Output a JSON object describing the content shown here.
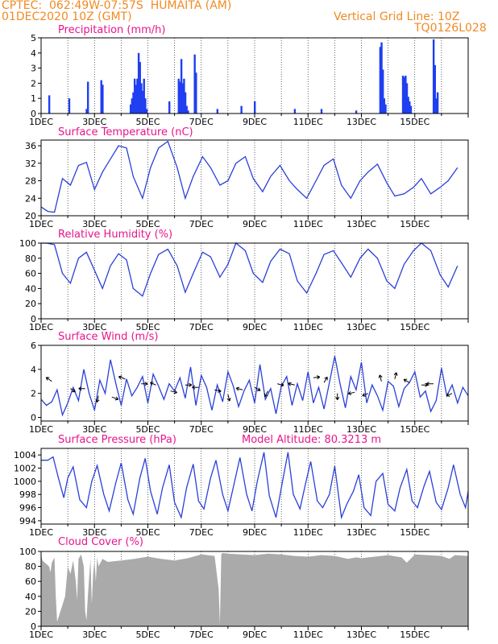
{
  "header": {
    "location": "CPTEC:  062:49W-07:57S  HUMAITA (AM)",
    "datetime": "01DEC2020 10Z (GMT)",
    "grid_note": "Vertical Grid Line: 10Z",
    "code": "TQ0126L028",
    "orange": "#f08a24",
    "magenta": "#e8148c"
  },
  "x_ticks": [
    "1DEC",
    "3DEC",
    "5DEC",
    "7DEC",
    "9DEC",
    "11DEC",
    "13DEC",
    "15DEC"
  ],
  "chart_data": [
    {
      "id": "precip",
      "type": "bar",
      "title": "Precipitation (mm/h)",
      "color": "#1f3ff0",
      "ylim": [
        0,
        5
      ],
      "yticks": [
        0,
        1,
        2,
        3,
        4,
        5
      ],
      "x_days": [
        0.3,
        1.05,
        1.7,
        1.75,
        2.25,
        2.3,
        3.35,
        3.4,
        3.45,
        3.5,
        3.55,
        3.6,
        3.65,
        3.7,
        3.75,
        3.8,
        3.85,
        3.9,
        3.95,
        4.8,
        5.15,
        5.2,
        5.25,
        5.3,
        5.35,
        5.4,
        5.45,
        5.5,
        5.75,
        5.8,
        6.6,
        7.5,
        8.0,
        9.5,
        10.5,
        11.8,
        12.7,
        12.75,
        12.8,
        12.85,
        12.9,
        13.55,
        13.6,
        13.65,
        13.7,
        13.75,
        13.8,
        13.85,
        14.7,
        14.75,
        14.8,
        14.85
      ],
      "values": [
        1.2,
        1.0,
        0.3,
        2.1,
        2.2,
        1.9,
        0.6,
        1.0,
        1.4,
        2.3,
        1.9,
        2.3,
        4.0,
        3.4,
        2.0,
        1.5,
        2.3,
        1.0,
        0.3,
        0.8,
        2.3,
        2.1,
        3.6,
        2.0,
        2.3,
        1.4,
        0.5,
        0.2,
        3.9,
        2.7,
        0.3,
        0.5,
        0.8,
        0.3,
        0.3,
        0.2,
        4.4,
        4.7,
        2.9,
        1.0,
        0.6,
        2.5,
        2.4,
        2.5,
        2.0,
        1.1,
        0.8,
        0.5,
        4.9,
        3.2,
        1.0,
        1.4
      ]
    },
    {
      "id": "temp",
      "type": "line",
      "title": "Surface Temperature (nC)",
      "color": "#2a40d8",
      "ylim": [
        20,
        37.3
      ],
      "yticks": [
        20,
        24,
        28,
        32,
        36
      ],
      "x_days": [
        0,
        0.25,
        0.5,
        0.8,
        1.1,
        1.4,
        1.7,
        2.0,
        2.3,
        2.6,
        2.9,
        3.2,
        3.45,
        3.8,
        4.1,
        4.4,
        4.75,
        5.1,
        5.4,
        5.7,
        6.05,
        6.35,
        6.7,
        7.0,
        7.3,
        7.65,
        7.95,
        8.3,
        8.6,
        8.95,
        9.3,
        9.6,
        9.95,
        10.3,
        10.6,
        10.95,
        11.25,
        11.6,
        11.95,
        12.25,
        12.6,
        12.95,
        13.25,
        13.6,
        13.95,
        14.25,
        14.6,
        14.95,
        15.25,
        15.6
      ],
      "values": [
        22,
        21,
        20.8,
        28.5,
        27,
        31.5,
        32.2,
        26,
        30,
        33,
        36,
        35.5,
        29,
        24,
        31,
        35.5,
        37,
        31,
        24,
        29,
        33.5,
        31,
        27,
        28,
        32,
        33.5,
        28.5,
        25.5,
        29,
        31.5,
        28,
        26,
        24,
        28,
        31.5,
        33,
        27,
        24,
        28,
        30,
        31.8,
        27.5,
        24.5,
        25,
        26.5,
        28.5,
        25,
        26.5,
        28,
        31
      ]
    },
    {
      "id": "rh",
      "type": "line",
      "title": "Relative Humidity (%)",
      "color": "#2a40d8",
      "ylim": [
        0,
        100
      ],
      "yticks": [
        0,
        20,
        40,
        60,
        80,
        100
      ],
      "x_days": [
        0,
        0.2,
        0.5,
        0.8,
        1.1,
        1.4,
        1.7,
        2.0,
        2.3,
        2.6,
        2.9,
        3.2,
        3.45,
        3.8,
        4.1,
        4.4,
        4.75,
        5.1,
        5.4,
        5.7,
        6.05,
        6.35,
        6.7,
        7.0,
        7.3,
        7.65,
        7.95,
        8.3,
        8.6,
        8.95,
        9.3,
        9.6,
        9.95,
        10.3,
        10.6,
        10.95,
        11.25,
        11.6,
        11.95,
        12.25,
        12.6,
        12.95,
        13.25,
        13.6,
        13.95,
        14.25,
        14.6,
        14.95,
        15.25,
        15.6
      ],
      "values": [
        100,
        100,
        98,
        60,
        47,
        80,
        88,
        64,
        40,
        70,
        86,
        78,
        40,
        30,
        60,
        85,
        92,
        70,
        35,
        60,
        88,
        82,
        55,
        72,
        100,
        90,
        60,
        48,
        76,
        92,
        86,
        50,
        34,
        60,
        85,
        90,
        74,
        55,
        80,
        92,
        80,
        50,
        40,
        72,
        90,
        100,
        90,
        58,
        42,
        70
      ]
    },
    {
      "id": "wind",
      "type": "line",
      "title": "Surface Wind (m/s)",
      "color": "#2a40d8",
      "ylim": [
        -0.3,
        6
      ],
      "yticks": [
        0,
        2,
        4,
        6
      ],
      "x_days": [
        0,
        0.2,
        0.4,
        0.6,
        0.8,
        1.0,
        1.2,
        1.4,
        1.6,
        1.8,
        2.0,
        2.2,
        2.4,
        2.6,
        2.8,
        3.0,
        3.2,
        3.4,
        3.6,
        3.8,
        4.0,
        4.2,
        4.4,
        4.6,
        4.8,
        5.0,
        5.2,
        5.4,
        5.6,
        5.8,
        6.0,
        6.2,
        6.4,
        6.6,
        6.8,
        7.0,
        7.2,
        7.4,
        7.6,
        7.8,
        8.0,
        8.2,
        8.4,
        8.6,
        8.8,
        9.0,
        9.2,
        9.4,
        9.6,
        9.8,
        10.0,
        10.2,
        10.4,
        10.6,
        10.8,
        11.0,
        11.2,
        11.4,
        11.6,
        11.8,
        12.0,
        12.2,
        12.4,
        12.6,
        12.8,
        13.0,
        13.2,
        13.4,
        13.6,
        13.8,
        14.0,
        14.2,
        14.4,
        14.6,
        14.8,
        15.0,
        15.2,
        15.4,
        15.6,
        15.8,
        16.0
      ],
      "values": [
        1.5,
        1.0,
        1.3,
        2.3,
        0.2,
        1.2,
        2.5,
        1.4,
        4.0,
        2.0,
        0.6,
        3.1,
        2.0,
        4.8,
        2.8,
        1.0,
        3.2,
        1.8,
        2.5,
        3.4,
        1.2,
        3.6,
        2.6,
        1.5,
        2.8,
        2.2,
        3.3,
        1.6,
        4.2,
        1.0,
        3.5,
        2.5,
        0.6,
        2.7,
        1.3,
        3.8,
        2.6,
        0.9,
        2.2,
        3.1,
        1.2,
        4.4,
        1.5,
        2.4,
        0.3,
        2.6,
        3.4,
        1.0,
        2.8,
        1.4,
        3.8,
        1.2,
        2.5,
        0.7,
        2.9,
        5.1,
        2.8,
        0.8,
        3.4,
        2.3,
        4.6,
        1.2,
        2.7,
        1.8,
        0.6,
        3.0,
        2.6,
        0.9,
        2.4,
        2.9,
        3.8,
        1.7,
        2.2,
        0.5,
        1.4,
        4.1,
        1.8,
        2.7,
        1.2,
        2.5,
        1.8
      ],
      "arrows": [
        {
          "x": 0.4,
          "y": 3.0,
          "dx": -7,
          "dy": -5
        },
        {
          "x": 1.1,
          "y": 2.4,
          "dx": 6,
          "dy": 4
        },
        {
          "x": 1.65,
          "y": 2.4,
          "dx": -8,
          "dy": 0
        },
        {
          "x": 2.15,
          "y": 1.8,
          "dx": -2,
          "dy": 8
        },
        {
          "x": 2.65,
          "y": 1.7,
          "dx": 8,
          "dy": 3
        },
        {
          "x": 3.15,
          "y": 3.2,
          "dx": -8,
          "dy": -3
        },
        {
          "x": 3.75,
          "y": 2.8,
          "dx": 8,
          "dy": 0
        },
        {
          "x": 4.3,
          "y": 2.7,
          "dx": -7,
          "dy": -3
        },
        {
          "x": 4.85,
          "y": 2.2,
          "dx": 8,
          "dy": 2
        },
        {
          "x": 5.4,
          "y": 2.7,
          "dx": 8,
          "dy": 0
        },
        {
          "x": 5.9,
          "y": 2.5,
          "dx": -8,
          "dy": 0
        },
        {
          "x": 6.5,
          "y": 2.3,
          "dx": 8,
          "dy": 2
        },
        {
          "x": 7.0,
          "y": 1.9,
          "dx": 2,
          "dy": 8
        },
        {
          "x": 7.55,
          "y": 2.3,
          "dx": -8,
          "dy": -2
        },
        {
          "x": 8.0,
          "y": 2.5,
          "dx": 7,
          "dy": 4
        },
        {
          "x": 8.5,
          "y": 2.2,
          "dx": -4,
          "dy": 7
        },
        {
          "x": 8.85,
          "y": 2.8,
          "dx": 8,
          "dy": 2
        },
        {
          "x": 9.5,
          "y": 2.7,
          "dx": -8,
          "dy": -2
        },
        {
          "x": 10.2,
          "y": 3.3,
          "dx": 8,
          "dy": -1
        },
        {
          "x": 10.6,
          "y": 2.9,
          "dx": 4,
          "dy": -7
        },
        {
          "x": 11.1,
          "y": 2.0,
          "dx": 0,
          "dy": 8
        },
        {
          "x": 11.75,
          "y": 2.1,
          "dx": -8,
          "dy": 2
        },
        {
          "x": 12.25,
          "y": 2.0,
          "dx": -7,
          "dy": 3
        },
        {
          "x": 12.75,
          "y": 3.0,
          "dx": -2,
          "dy": -8
        },
        {
          "x": 13.25,
          "y": 3.2,
          "dx": 2,
          "dy": -8
        },
        {
          "x": 13.8,
          "y": 2.9,
          "dx": -7,
          "dy": -4
        },
        {
          "x": 14.25,
          "y": 2.7,
          "dx": 8,
          "dy": 0
        },
        {
          "x": 14.7,
          "y": 2.8,
          "dx": -9,
          "dy": 0
        },
        {
          "x": 15.4,
          "y": 2.0,
          "dx": -7,
          "dy": 3
        }
      ]
    },
    {
      "id": "pres",
      "type": "line",
      "title": "Surface Pressure (hPa)",
      "annotation": "Model Altitude: 80.3213 m",
      "color": "#2a40d8",
      "ylim": [
        993.5,
        1005
      ],
      "yticks": [
        994,
        996,
        998,
        1000,
        1002,
        1004
      ],
      "x_days": [
        0,
        0.25,
        0.45,
        0.65,
        0.85,
        1.0,
        1.2,
        1.45,
        1.7,
        1.9,
        2.1,
        2.35,
        2.55,
        2.8,
        3.0,
        3.25,
        3.45,
        3.7,
        3.9,
        4.1,
        4.35,
        4.55,
        4.8,
        5.0,
        5.25,
        5.45,
        5.7,
        5.9,
        6.1,
        6.35,
        6.55,
        6.8,
        7.0,
        7.25,
        7.45,
        7.7,
        7.9,
        8.1,
        8.35,
        8.55,
        8.8,
        9.0,
        9.25,
        9.45,
        9.7,
        9.9,
        10.1,
        10.35,
        10.55,
        10.8,
        11.0,
        11.25,
        11.45,
        11.7,
        11.9,
        12.1,
        12.35,
        12.55,
        12.8,
        13.0,
        13.25,
        13.45,
        13.7,
        13.9,
        14.1,
        14.35,
        14.55,
        14.8,
        15.0,
        15.25,
        15.45,
        15.7,
        15.9,
        16.0
      ],
      "values": [
        1003.2,
        1003.2,
        1003.7,
        1000.5,
        997.5,
        1000.5,
        1002.2,
        997.2,
        996.0,
        1000.0,
        1002.4,
        998.0,
        995.5,
        999.8,
        1002.8,
        997.2,
        995.0,
        1000.5,
        1003.5,
        998.5,
        995.0,
        999.0,
        1002.5,
        996.8,
        994.5,
        999.0,
        1002.6,
        997.0,
        995.8,
        1000.5,
        1003.2,
        998.0,
        995.5,
        1000.0,
        1003.6,
        998.0,
        995.5,
        1000.0,
        1004.4,
        997.8,
        994.5,
        999.0,
        1004.4,
        998.0,
        995.8,
        999.5,
        1003.0,
        997.0,
        996.0,
        998.0,
        1002.3,
        994.5,
        996.5,
        998.5,
        1001.0,
        996.0,
        994.8,
        1000.0,
        1001.2,
        996.5,
        995.5,
        999.0,
        1001.8,
        997.0,
        996.0,
        999.3,
        1001.5,
        996.8,
        995.7,
        999.0,
        1002.5,
        998.0,
        996.0,
        998.5
      ]
    },
    {
      "id": "cloud",
      "type": "area",
      "title": "Cloud Cover (%)",
      "color": "#aaaaaa",
      "ylim": [
        0,
        100
      ],
      "yticks": [
        0,
        20,
        40,
        60,
        80,
        100
      ],
      "x_days": [
        0,
        0.05,
        0.3,
        0.35,
        0.4,
        0.5,
        0.55,
        0.6,
        0.9,
        1.0,
        1.1,
        1.2,
        1.3,
        1.35,
        1.4,
        1.5,
        1.6,
        1.65,
        1.7,
        1.75,
        1.85,
        1.9,
        1.95,
        2.0,
        2.05,
        2.1,
        2.15,
        2.3,
        2.5,
        3.0,
        3.5,
        4.0,
        4.5,
        5.0,
        5.5,
        6.0,
        6.5,
        6.65,
        6.7,
        6.75,
        6.8,
        7.0,
        7.5,
        8.0,
        8.5,
        9.0,
        9.5,
        10.0,
        10.5,
        11.0,
        11.5,
        11.8,
        12.0,
        12.5,
        13.0,
        13.5,
        13.7,
        14.0,
        14.5,
        15.0,
        15.3,
        15.5,
        16.0
      ],
      "values": [
        96,
        88,
        80,
        72,
        85,
        92,
        40,
        6,
        40,
        80,
        70,
        88,
        60,
        35,
        90,
        96,
        80,
        20,
        8,
        40,
        90,
        30,
        70,
        88,
        60,
        92,
        80,
        90,
        86,
        88,
        90,
        93,
        90,
        88,
        91,
        96,
        94,
        50,
        3,
        96,
        98,
        97,
        96,
        95,
        97,
        96,
        94,
        93,
        95,
        94,
        90,
        92,
        91,
        93,
        95,
        92,
        85,
        96,
        95,
        94,
        90,
        95,
        94
      ]
    }
  ]
}
